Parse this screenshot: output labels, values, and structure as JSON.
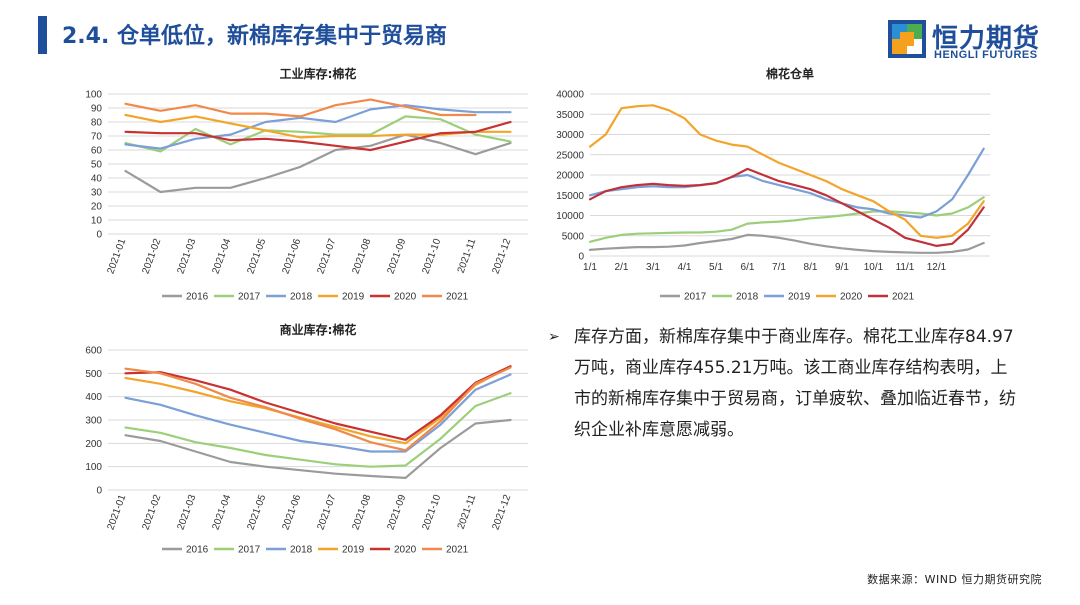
{
  "header": {
    "title": "2.4. 仓单低位，新棉库存集中于贸易商"
  },
  "logo": {
    "name_cn": "恒力期货",
    "name_en": "HENGLI FUTURES",
    "colors": [
      "#f4a11d",
      "#2b8fd6",
      "#4cae4f",
      "#1f4e9a"
    ]
  },
  "bullet": {
    "icon": "arrow-right-icon",
    "text": "库存方面，新棉库存集中于商业库存。棉花工业库存84.97万吨，商业库存455.21万吨。该工商业库存结构表明，上市的新棉库存集中于贸易商，订单疲软、叠加临近春节，纺织企业补库意愿减弱。"
  },
  "source": "数据来源：WIND 恒力期货研究院",
  "chart_data": [
    {
      "type": "line",
      "title": "工业库存:棉花",
      "categories": [
        "2021-01",
        "2021-02",
        "2021-03",
        "2021-04",
        "2021-05",
        "2021-06",
        "2021-07",
        "2021-08",
        "2021-09",
        "2021-10",
        "2021-11",
        "2021-12"
      ],
      "ylim": [
        0,
        100
      ],
      "yticks": [
        0,
        10,
        20,
        30,
        40,
        50,
        60,
        70,
        80,
        90,
        100
      ],
      "legend_position": "bottom",
      "series": [
        {
          "name": "2016",
          "color": "#9b9b9b",
          "values": [
            45,
            30,
            33,
            33,
            40,
            48,
            60,
            63,
            71,
            65,
            57,
            65
          ]
        },
        {
          "name": "2017",
          "color": "#9ccf7a",
          "values": [
            65,
            59,
            75,
            64,
            74,
            73,
            71,
            71,
            84,
            82,
            71,
            66
          ]
        },
        {
          "name": "2018",
          "color": "#7b9fd6",
          "values": [
            64,
            61,
            68,
            71,
            80,
            83,
            80,
            89,
            92,
            89,
            87,
            87
          ]
        },
        {
          "name": "2019",
          "color": "#f2a52a",
          "values": [
            85,
            80,
            84,
            79,
            74,
            69,
            70,
            70,
            71,
            71,
            73,
            73
          ]
        },
        {
          "name": "2020",
          "color": "#c83232",
          "values": [
            73,
            72,
            72,
            67,
            68,
            66,
            63,
            60,
            66,
            72,
            73,
            80
          ]
        },
        {
          "name": "2021",
          "color": "#ef8a4a",
          "values": [
            93,
            88,
            92,
            86,
            86,
            84,
            92,
            96,
            91,
            85,
            85,
            null
          ]
        }
      ]
    },
    {
      "type": "line",
      "title": "棉花仓单",
      "x_ticks": [
        "1/1",
        "2/1",
        "3/1",
        "4/1",
        "5/1",
        "6/1",
        "7/1",
        "8/1",
        "9/1",
        "10/1",
        "11/1",
        "12/1"
      ],
      "ylim": [
        0,
        40000
      ],
      "yticks": [
        0,
        5000,
        10000,
        15000,
        20000,
        25000,
        30000,
        35000,
        40000
      ],
      "legend_position": "bottom",
      "series": [
        {
          "name": "2017",
          "color": "#9b9b9b",
          "x": [
            0,
            0.5,
            1,
            1.5,
            2,
            2.5,
            3,
            3.5,
            4,
            4.5,
            5,
            5.5,
            6,
            6.5,
            7,
            7.5,
            8,
            8.5,
            9,
            9.5,
            10,
            10.5,
            11,
            11.5,
            12,
            12.5
          ],
          "values": [
            1500,
            1800,
            2000,
            2200,
            2200,
            2300,
            2600,
            3200,
            3700,
            4200,
            5200,
            5000,
            4500,
            3800,
            3000,
            2400,
            1900,
            1500,
            1200,
            1000,
            900,
            800,
            800,
            1000,
            1600,
            3200
          ]
        },
        {
          "name": "2018",
          "color": "#9ccf7a",
          "x": [
            0,
            0.5,
            1,
            1.5,
            2,
            2.5,
            3,
            3.5,
            4,
            4.5,
            5,
            5.5,
            6,
            6.5,
            7,
            7.5,
            8,
            8.5,
            9,
            9.5,
            10,
            10.5,
            11,
            11.5,
            12,
            12.5
          ],
          "values": [
            3500,
            4500,
            5200,
            5500,
            5600,
            5700,
            5800,
            5800,
            6000,
            6500,
            8000,
            8300,
            8500,
            8800,
            9300,
            9600,
            10000,
            10500,
            11000,
            11000,
            10800,
            10500,
            10000,
            10500,
            12000,
            14500
          ]
        },
        {
          "name": "2019",
          "color": "#7b9fd6",
          "x": [
            0,
            0.5,
            1,
            1.5,
            2,
            2.5,
            3,
            3.5,
            4,
            4.5,
            5,
            5.5,
            6,
            6.5,
            7,
            7.5,
            8,
            8.5,
            9,
            9.5,
            10,
            10.5,
            11,
            11.5,
            12,
            12.5
          ],
          "values": [
            15000,
            16000,
            16500,
            17000,
            17200,
            17000,
            17000,
            17500,
            18000,
            19500,
            20000,
            18500,
            17500,
            16500,
            15500,
            14000,
            13000,
            12000,
            11500,
            10500,
            10000,
            9500,
            11000,
            14000,
            20000,
            26500
          ]
        },
        {
          "name": "2020",
          "color": "#f2a52a",
          "x": [
            0,
            0.5,
            1,
            1.5,
            2,
            2.5,
            3,
            3.5,
            4,
            4.5,
            5,
            5.5,
            6,
            6.5,
            7,
            7.5,
            8,
            8.5,
            9,
            9.5,
            10,
            10.5,
            11,
            11.5,
            12,
            12.5
          ],
          "values": [
            27000,
            30000,
            36500,
            37000,
            37200,
            36000,
            34000,
            30000,
            28500,
            27500,
            27000,
            25000,
            23000,
            21500,
            20000,
            18500,
            16500,
            15000,
            13500,
            11000,
            9000,
            5000,
            4500,
            5000,
            8000,
            13500
          ]
        },
        {
          "name": "2021",
          "color": "#c0323a",
          "x": [
            0,
            0.5,
            1,
            1.5,
            2,
            2.5,
            3,
            3.5,
            4,
            4.5,
            5,
            5.5,
            6,
            6.5,
            7,
            7.5,
            8,
            8.5,
            9,
            9.5,
            10,
            10.5,
            11,
            11.5,
            12,
            12.5
          ],
          "values": [
            14000,
            16000,
            17000,
            17500,
            17800,
            17500,
            17300,
            17500,
            18000,
            19500,
            21500,
            20000,
            18500,
            17500,
            16500,
            15000,
            13000,
            11000,
            9000,
            7000,
            4500,
            3500,
            2500,
            3000,
            6500,
            12000
          ]
        }
      ]
    },
    {
      "type": "line",
      "title": "商业库存:棉花",
      "categories": [
        "2021-01",
        "2021-02",
        "2021-03",
        "2021-04",
        "2021-05",
        "2021-06",
        "2021-07",
        "2021-08",
        "2021-09",
        "2021-10",
        "2021-11",
        "2021-12"
      ],
      "ylim": [
        0,
        600
      ],
      "yticks": [
        0,
        100,
        200,
        300,
        400,
        500,
        600
      ],
      "legend_position": "bottom",
      "series": [
        {
          "name": "2016",
          "color": "#9b9b9b",
          "values": [
            235,
            210,
            165,
            120,
            100,
            85,
            70,
            60,
            52,
            180,
            285,
            300
          ]
        },
        {
          "name": "2017",
          "color": "#9ccf7a",
          "values": [
            268,
            245,
            205,
            180,
            150,
            130,
            110,
            100,
            105,
            220,
            360,
            415
          ]
        },
        {
          "name": "2018",
          "color": "#7b9fd6",
          "values": [
            395,
            365,
            320,
            280,
            245,
            210,
            190,
            165,
            165,
            280,
            430,
            495
          ]
        },
        {
          "name": "2019",
          "color": "#f2a52a",
          "values": [
            480,
            455,
            420,
            380,
            350,
            310,
            270,
            230,
            200,
            310,
            450,
            530
          ]
        },
        {
          "name": "2020",
          "color": "#c83232",
          "values": [
            500,
            505,
            470,
            430,
            375,
            330,
            285,
            250,
            215,
            320,
            460,
            530
          ]
        },
        {
          "name": "2021",
          "color": "#ef8a4a",
          "values": [
            520,
            500,
            455,
            395,
            355,
            305,
            260,
            205,
            170,
            295,
            455,
            525
          ]
        }
      ]
    }
  ]
}
